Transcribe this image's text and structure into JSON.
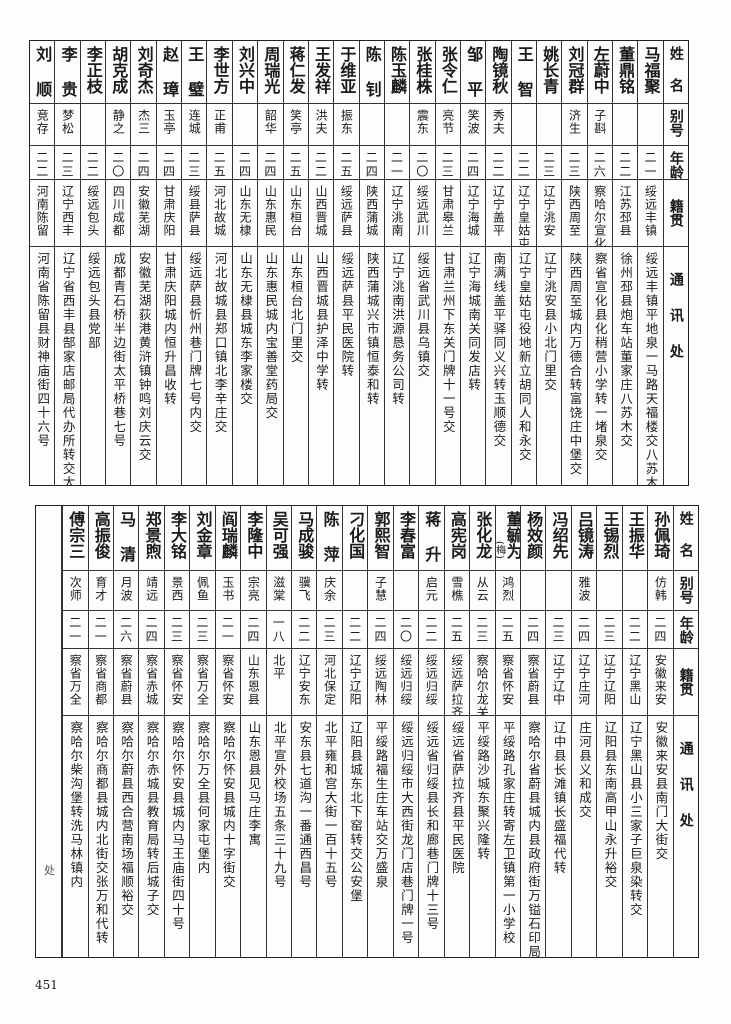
{
  "headers": {
    "name": "姓名",
    "alias": "别号",
    "age": "年龄",
    "home": "籍贯",
    "address": "通讯处"
  },
  "table_top": [
    {
      "name": "马福聚",
      "alias": "",
      "age": "二一",
      "home": "绥远丰镇",
      "address": "绥远丰镇平地泉一马路天福楼交八苏木转交"
    },
    {
      "name": "董鼎铭",
      "alias": "",
      "age": "二二",
      "home": "江苏邳县",
      "address": "徐州邳县炮车站董家庄八苏木交"
    },
    {
      "name": "左蔚中",
      "alias": "子斟",
      "age": "二六",
      "home": "察哈尔宣化",
      "address": "察省宣化县化稍营小学转一堵泉交"
    },
    {
      "name": "刘冠群",
      "alias": "济生",
      "age": "二三",
      "home": "陕西周至",
      "address": "陕西周至城内万德合转富饶庄中堡交"
    },
    {
      "name": "姚长青",
      "alias": "",
      "age": "二三",
      "home": "辽宁洮安",
      "address": "辽宁洮安县小北门里交"
    },
    {
      "name": "王智",
      "alias": "",
      "age": "二二",
      "home": "辽宁皇姑屯",
      "address": "辽宁皇姑屯役地新立胡同人和永交"
    },
    {
      "name": "陶镜秋",
      "alias": "秀夫",
      "age": "二二",
      "home": "辽宁盖平",
      "address": "南满线盖平驿同义兴转玉顺德交"
    },
    {
      "name": "邹平",
      "alias": "笑波",
      "age": "二四",
      "home": "辽宁海城",
      "address": "辽宁海城南关同发店转"
    },
    {
      "name": "张令仁",
      "alias": "亮节",
      "age": "二三",
      "home": "甘肃皋兰",
      "address": "甘肃兰州下东关门牌十一号交"
    },
    {
      "name": "张桂株",
      "alias": "震东",
      "age": "二〇",
      "home": "绥远武川",
      "address": "绥远省武川县乌镇交"
    },
    {
      "name": "陈玉麟",
      "alias": "",
      "age": "二一",
      "home": "辽宁洮南",
      "address": "辽宁洮南洪源恳务公司转"
    },
    {
      "name": "陈钊",
      "alias": "",
      "age": "二四",
      "home": "陕西蒲城",
      "address": "陕西蒲城兴市镇恒泰和转"
    },
    {
      "name": "于维亚",
      "alias": "振东",
      "age": "二五",
      "home": "绥远萨县",
      "address": "绥远萨县平民医院转"
    },
    {
      "name": "王发祥",
      "alias": "洪夫",
      "age": "二二",
      "home": "山西晋城",
      "address": "山西晋城县护泽中学转"
    },
    {
      "name": "蒋仁发",
      "alias": "笑亭",
      "age": "二五",
      "home": "山东桓台",
      "address": "山东桓台北门里交"
    },
    {
      "name": "周瑞光",
      "alias": "韶华",
      "age": "二四",
      "home": "山东惠民",
      "address": "山东惠民城内宝善堂药局交"
    },
    {
      "name": "刘兴中",
      "alias": "",
      "age": "二四",
      "home": "山东无棣",
      "address": "山东无棣县城东李家楼交"
    },
    {
      "name": "李世方",
      "alias": "正甫",
      "age": "二五",
      "home": "河北故城",
      "address": "河北故城县郑口镇北李辛庄交"
    },
    {
      "name": "王璧",
      "alias": "连城",
      "age": "二三",
      "home": "绥县萨县",
      "address": "绥远萨县忻州巷门牌七号内交"
    },
    {
      "name": "赵璋",
      "alias": "玉亭",
      "age": "二四",
      "home": "甘肃庆阳",
      "address": "甘肃庆阳城内恒升昌收转"
    },
    {
      "name": "刘奇杰",
      "alias": "杰三",
      "age": "二四",
      "home": "安徽芜湖",
      "address": "安徽芜湖荻港黄浒镇钟鸣刘庆云交"
    },
    {
      "name": "胡克成",
      "alias": "静之",
      "age": "二〇",
      "home": "四川成都",
      "address": "成都青石桥半边街太平桥巷七号"
    },
    {
      "name": "李正枝",
      "alias": "",
      "age": "二二",
      "home": "绥远包头",
      "address": "绥远包头县党部"
    },
    {
      "name": "李贵",
      "alias": "梦松",
      "age": "二三",
      "home": "辽宁西丰",
      "address": "辽宁省西丰县郜家店邮局代办所转交太平河"
    },
    {
      "name": "刘顺",
      "alias": "竞存",
      "age": "二二",
      "home": "河南陈留",
      "address": "河南省陈留县财神庙街四十六号"
    }
  ],
  "table_bottom": [
    {
      "name": "孙佩琦",
      "alias": "仿韩",
      "age": "二四",
      "home": "安徽来安",
      "address": "安徽来安县南门大街交"
    },
    {
      "name": "王振华",
      "alias": "",
      "age": "二二",
      "home": "辽宁黑山",
      "address": "辽宁黑山县小三家子巨泉染转交"
    },
    {
      "name": "王锡烈",
      "alias": "",
      "age": "二三",
      "home": "辽宁辽阳",
      "address": "辽阳县东南高甲山永升裕交"
    },
    {
      "name": "吕镜涛",
      "alias": "雅波",
      "age": "二四",
      "home": "辽宁庄河",
      "address": "庄河县义和成交"
    },
    {
      "name": "冯绍先",
      "alias": "",
      "age": "二三",
      "home": "辽宁辽中",
      "address": "辽中县长滩镇长盛福代转"
    },
    {
      "name": "杨效颜",
      "alias": "",
      "age": "二四",
      "home": "察省蔚县",
      "address": "察哈尔省蔚县城内县政府街万镒石印局"
    },
    {
      "name": "董毓为",
      "name_note": "(梅)",
      "alias": "鸿烈",
      "age": "二五",
      "home": "察省怀安",
      "address": "平绥路孔家庄转寄左卫镇第一小学校"
    },
    {
      "name": "张化龙",
      "alias": "从云",
      "age": "二三",
      "home": "察哈尔龙关",
      "address": "平绥路沙城东聚兴隆转"
    },
    {
      "name": "高宪岗",
      "alias": "雪樵",
      "age": "二五",
      "home": "绥远萨拉齐",
      "address": "绥远省萨拉齐县平民医院"
    },
    {
      "name": "蒋升",
      "alias": "启元",
      "age": "二二",
      "home": "绥远归绥",
      "address": "绥远省归绥县长和廊巷门牌十三号"
    },
    {
      "name": "李春富",
      "alias": "",
      "age": "二〇",
      "home": "绥远归绥",
      "address": "绥远归绥市大西街龙门店巷门牌一号"
    },
    {
      "name": "郭熙智",
      "alias": "子慧",
      "age": "二四",
      "home": "绥远陶林",
      "address": "平绥路福生庄车站交万盛泉"
    },
    {
      "name": "刁化国",
      "alias": "",
      "age": "二二",
      "home": "辽宁辽阳",
      "address": "辽阳县城东北下窑转交公安堡"
    },
    {
      "name": "陈萍",
      "alias": "庆余",
      "age": "二三",
      "home": "河北保定",
      "address": "北平雍和宫大街一百十五号"
    },
    {
      "name": "马成骏",
      "alias": "骥飞",
      "age": "二二",
      "home": "辽宁安东",
      "address": "安东县七道沟一番通西昌号"
    },
    {
      "name": "吴可强",
      "alias": "滋棠",
      "age": "一八",
      "home": "北平",
      "address": "北平宣外校场五条三十九号"
    },
    {
      "name": "李隆中",
      "alias": "宗亮",
      "age": "二四",
      "home": "山东恩县",
      "address": "山东恩县见马庄李寓"
    },
    {
      "name": "阎瑞麟",
      "alias": "玉书",
      "age": "二一",
      "home": "察省怀安",
      "address": "察哈尔怀安县城内十字街交"
    },
    {
      "name": "刘金章",
      "alias": "佩鱼",
      "age": "二三",
      "home": "察省万全",
      "address": "察哈尔万全县何家屯堡内"
    },
    {
      "name": "李大铭",
      "alias": "景西",
      "age": "二三",
      "home": "察省怀安",
      "address": "察哈尔怀安县城内马王庙街四十号"
    },
    {
      "name": "郑景煦",
      "alias": "靖远",
      "age": "二四",
      "home": "察省赤城",
      "address": "察哈尔赤城县教育局转后城子交"
    },
    {
      "name": "马清",
      "alias": "月波",
      "age": "二六",
      "home": "察省蔚县",
      "address": "察哈尔蔚县西合营南场福顺裕交"
    },
    {
      "name": "高振俊",
      "alias": "育才",
      "age": "二一",
      "home": "察省商都",
      "address": "察哈尔商都县城内北街交张万和代转"
    },
    {
      "name": "傅宗三",
      "alias": "次师",
      "age": "二一",
      "home": "察省万全",
      "address": "察哈尔柴沟堡转洗马林镇内"
    }
  ],
  "margin_char": "处",
  "page_number": "451"
}
